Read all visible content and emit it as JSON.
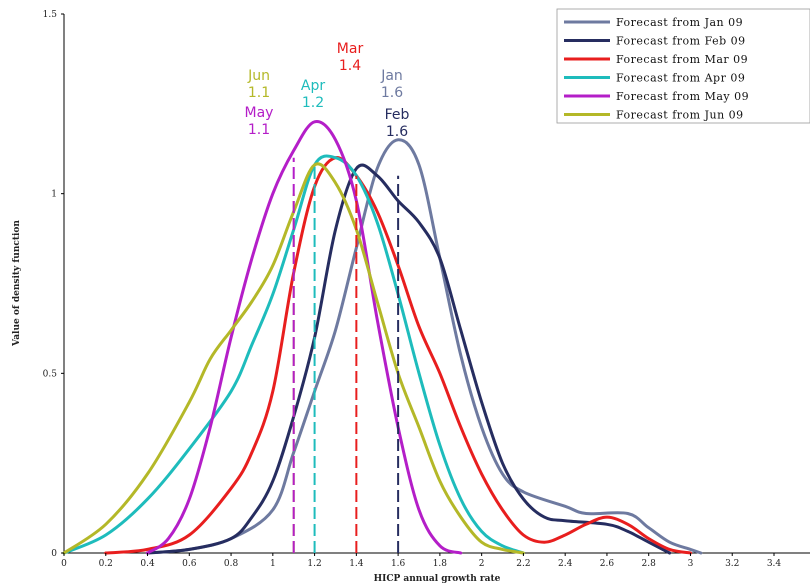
{
  "chart_data": {
    "type": "line",
    "title": "",
    "xlabel": "HICP annual growth rate",
    "ylabel": "Value of density function",
    "xlim": [
      0,
      3.4
    ],
    "ylim": [
      0,
      1.5
    ],
    "x_ticks": [
      "0",
      "0.2",
      "0.4",
      "0.6",
      "0.8",
      "1",
      "1.2",
      "1.4",
      "1.6",
      "1.8",
      "2",
      "2.2",
      "2.4",
      "2.6",
      "2.8",
      "3",
      "3.2",
      "3.4"
    ],
    "y_ticks": [
      "0",
      "0.5",
      "1",
      "1.5"
    ],
    "grid": false,
    "legend_position": "top-right",
    "series": [
      {
        "name": "Forecast from Jan 09",
        "color": "#6e7aa0",
        "points": [
          [
            0.4,
            0.0
          ],
          [
            0.6,
            0.01
          ],
          [
            0.8,
            0.04
          ],
          [
            1.0,
            0.12
          ],
          [
            1.1,
            0.28
          ],
          [
            1.2,
            0.45
          ],
          [
            1.3,
            0.62
          ],
          [
            1.4,
            0.85
          ],
          [
            1.5,
            1.07
          ],
          [
            1.6,
            1.15
          ],
          [
            1.7,
            1.08
          ],
          [
            1.8,
            0.82
          ],
          [
            1.9,
            0.55
          ],
          [
            2.0,
            0.35
          ],
          [
            2.1,
            0.22
          ],
          [
            2.2,
            0.17
          ],
          [
            2.4,
            0.13
          ],
          [
            2.5,
            0.11
          ],
          [
            2.7,
            0.11
          ],
          [
            2.8,
            0.07
          ],
          [
            2.9,
            0.03
          ],
          [
            3.0,
            0.01
          ],
          [
            3.05,
            0.0
          ]
        ]
      },
      {
        "name": "Forecast from Feb 09",
        "color": "#262d60",
        "points": [
          [
            0.4,
            0.0
          ],
          [
            0.6,
            0.01
          ],
          [
            0.8,
            0.04
          ],
          [
            0.9,
            0.1
          ],
          [
            1.0,
            0.2
          ],
          [
            1.1,
            0.38
          ],
          [
            1.2,
            0.6
          ],
          [
            1.3,
            0.9
          ],
          [
            1.4,
            1.07
          ],
          [
            1.5,
            1.05
          ],
          [
            1.6,
            0.98
          ],
          [
            1.7,
            0.92
          ],
          [
            1.8,
            0.82
          ],
          [
            1.9,
            0.62
          ],
          [
            2.0,
            0.42
          ],
          [
            2.1,
            0.25
          ],
          [
            2.2,
            0.15
          ],
          [
            2.3,
            0.1
          ],
          [
            2.4,
            0.09
          ],
          [
            2.6,
            0.08
          ],
          [
            2.7,
            0.06
          ],
          [
            2.8,
            0.03
          ],
          [
            2.9,
            0.0
          ]
        ]
      },
      {
        "name": "Forecast from Mar 09",
        "color": "#e81e1e",
        "points": [
          [
            0.2,
            0.0
          ],
          [
            0.4,
            0.01
          ],
          [
            0.6,
            0.05
          ],
          [
            0.8,
            0.18
          ],
          [
            0.9,
            0.28
          ],
          [
            1.0,
            0.45
          ],
          [
            1.1,
            0.78
          ],
          [
            1.2,
            1.02
          ],
          [
            1.3,
            1.1
          ],
          [
            1.4,
            1.05
          ],
          [
            1.5,
            0.95
          ],
          [
            1.6,
            0.8
          ],
          [
            1.7,
            0.63
          ],
          [
            1.8,
            0.5
          ],
          [
            1.9,
            0.35
          ],
          [
            2.0,
            0.22
          ],
          [
            2.1,
            0.12
          ],
          [
            2.2,
            0.05
          ],
          [
            2.3,
            0.03
          ],
          [
            2.4,
            0.05
          ],
          [
            2.5,
            0.08
          ],
          [
            2.6,
            0.1
          ],
          [
            2.7,
            0.08
          ],
          [
            2.8,
            0.04
          ],
          [
            2.9,
            0.01
          ],
          [
            3.0,
            0.0
          ]
        ]
      },
      {
        "name": "Forecast from Apr 09",
        "color": "#1ebcbc",
        "points": [
          [
            0.0,
            0.0
          ],
          [
            0.2,
            0.05
          ],
          [
            0.4,
            0.15
          ],
          [
            0.6,
            0.29
          ],
          [
            0.8,
            0.45
          ],
          [
            0.9,
            0.58
          ],
          [
            1.0,
            0.72
          ],
          [
            1.1,
            0.9
          ],
          [
            1.2,
            1.08
          ],
          [
            1.3,
            1.1
          ],
          [
            1.4,
            1.05
          ],
          [
            1.5,
            0.92
          ],
          [
            1.6,
            0.72
          ],
          [
            1.7,
            0.5
          ],
          [
            1.8,
            0.3
          ],
          [
            1.9,
            0.15
          ],
          [
            2.0,
            0.06
          ],
          [
            2.1,
            0.02
          ],
          [
            2.2,
            0.0
          ]
        ]
      },
      {
        "name": "Forecast from May 09",
        "color": "#b41ec8",
        "points": [
          [
            0.4,
            0.0
          ],
          [
            0.5,
            0.04
          ],
          [
            0.6,
            0.15
          ],
          [
            0.7,
            0.35
          ],
          [
            0.8,
            0.6
          ],
          [
            0.9,
            0.82
          ],
          [
            1.0,
            1.0
          ],
          [
            1.1,
            1.12
          ],
          [
            1.2,
            1.2
          ],
          [
            1.3,
            1.15
          ],
          [
            1.4,
            0.98
          ],
          [
            1.5,
            0.65
          ],
          [
            1.6,
            0.35
          ],
          [
            1.7,
            0.12
          ],
          [
            1.8,
            0.02
          ],
          [
            1.9,
            0.0
          ]
        ]
      },
      {
        "name": "Forecast from Jun 09",
        "color": "#b4b828",
        "points": [
          [
            0.0,
            0.0
          ],
          [
            0.2,
            0.08
          ],
          [
            0.4,
            0.22
          ],
          [
            0.6,
            0.42
          ],
          [
            0.7,
            0.54
          ],
          [
            0.8,
            0.62
          ],
          [
            0.9,
            0.7
          ],
          [
            1.0,
            0.8
          ],
          [
            1.1,
            0.95
          ],
          [
            1.2,
            1.08
          ],
          [
            1.3,
            1.03
          ],
          [
            1.4,
            0.9
          ],
          [
            1.5,
            0.7
          ],
          [
            1.6,
            0.5
          ],
          [
            1.7,
            0.35
          ],
          [
            1.8,
            0.2
          ],
          [
            1.9,
            0.1
          ],
          [
            2.0,
            0.03
          ],
          [
            2.1,
            0.01
          ],
          [
            2.2,
            0.0
          ]
        ]
      }
    ],
    "markers": [
      {
        "series": "Forecast from Jun 09",
        "x": 1.1,
        "top": 1.0
      },
      {
        "series": "Forecast from May 09",
        "x": 1.1,
        "top": 1.1
      },
      {
        "series": "Forecast from Apr 09",
        "x": 1.2,
        "top": 1.08
      },
      {
        "series": "Forecast from Mar 09",
        "x": 1.4,
        "top": 1.05
      },
      {
        "series": "Forecast from Feb 09",
        "x": 1.6,
        "top": 1.05
      }
    ],
    "annotations": [
      {
        "label": "Jun",
        "value": "1.1",
        "color": "#b4b828"
      },
      {
        "label": "May",
        "value": "1.1",
        "color": "#b41ec8"
      },
      {
        "label": "Apr",
        "value": "1.2",
        "color": "#1ebcbc"
      },
      {
        "label": "Mar",
        "value": "1.4",
        "color": "#e81e1e"
      },
      {
        "label": "Jan",
        "value": "1.6",
        "color": "#6e7aa0"
      },
      {
        "label": "Feb",
        "value": "1.6",
        "color": "#262d60"
      }
    ]
  }
}
